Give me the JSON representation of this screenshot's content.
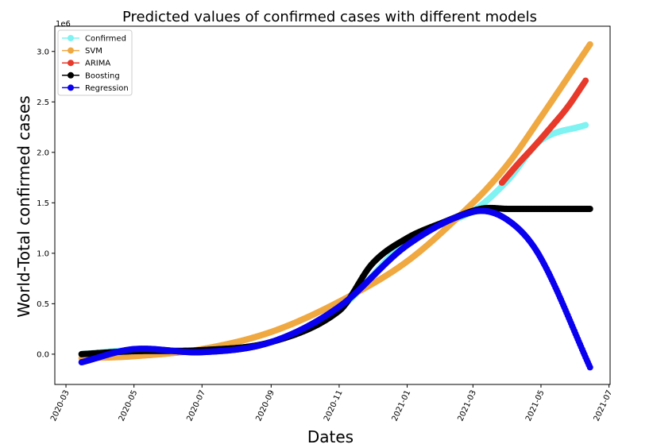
{
  "chart_data": {
    "type": "scatter",
    "title": "Predicted values of confirmed cases with different models",
    "xlabel": "Dates",
    "ylabel": "World-Total confirmed cases",
    "y_multiplier": "1e6",
    "x_ticks": [
      "2020-03",
      "2020-05",
      "2020-07",
      "2020-09",
      "2020-11",
      "2021-01",
      "2021-03",
      "2021-05",
      "2021-07"
    ],
    "y_ticks": [
      "0.0",
      "0.5",
      "1.0",
      "1.5",
      "2.0",
      "2.5",
      "3.0"
    ],
    "xlim": [
      "2020-02-20",
      "2021-07-02"
    ],
    "ylim": [
      -0.3,
      3.25
    ],
    "legend_position": "upper-left",
    "grid": false,
    "series": [
      {
        "name": "Confirmed",
        "color": "#7ff2f2",
        "x": [
          "2020-03-15",
          "2020-05-01",
          "2020-07-01",
          "2020-09-01",
          "2020-11-01",
          "2021-01-01",
          "2021-03-01",
          "2021-04-01",
          "2021-05-01",
          "2021-06-10"
        ],
        "y": [
          0.0,
          0.04,
          0.03,
          0.12,
          0.45,
          1.12,
          1.42,
          1.72,
          2.12,
          2.27
        ]
      },
      {
        "name": "SVM",
        "color": "#f0a840",
        "x": [
          "2020-03-15",
          "2020-05-01",
          "2020-07-01",
          "2020-09-01",
          "2020-11-01",
          "2021-01-01",
          "2021-03-01",
          "2021-04-01",
          "2021-05-01",
          "2021-06-14"
        ],
        "y": [
          -0.04,
          -0.02,
          0.05,
          0.22,
          0.52,
          0.92,
          1.5,
          1.88,
          2.35,
          3.07
        ]
      },
      {
        "name": "ARIMA",
        "color": "#e8392a",
        "x": [
          "2021-03-27",
          "2021-04-10",
          "2021-04-25",
          "2021-05-10",
          "2021-05-25",
          "2021-06-10"
        ],
        "y": [
          1.7,
          1.88,
          2.06,
          2.25,
          2.45,
          2.71
        ]
      },
      {
        "name": "Boosting",
        "color": "#000000",
        "x": [
          "2020-03-15",
          "2020-05-01",
          "2020-07-01",
          "2020-09-01",
          "2020-11-01",
          "2020-12-01",
          "2021-01-01",
          "2021-02-01",
          "2021-03-08",
          "2021-04-01",
          "2021-05-01",
          "2021-06-14"
        ],
        "y": [
          0.0,
          0.03,
          0.04,
          0.12,
          0.43,
          0.9,
          1.15,
          1.3,
          1.44,
          1.44,
          1.44,
          1.44
        ]
      },
      {
        "name": "Regression",
        "color": "#0a00f0",
        "x": [
          "2020-03-15",
          "2020-05-01",
          "2020-07-01",
          "2020-09-01",
          "2020-11-01",
          "2021-01-01",
          "2021-03-01",
          "2021-04-01",
          "2021-05-01",
          "2021-06-14"
        ],
        "y": [
          -0.08,
          0.05,
          0.02,
          0.12,
          0.47,
          1.08,
          1.41,
          1.33,
          0.95,
          -0.13
        ]
      }
    ]
  }
}
